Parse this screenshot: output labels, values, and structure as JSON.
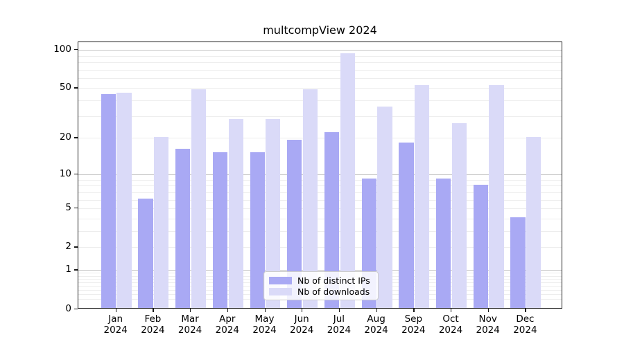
{
  "title": "multcompView 2024",
  "colors": {
    "ips_bar": "#a9a9f4",
    "downloads_bar": "#dadaf8",
    "grid_major": "#c4c4c4",
    "grid_minor": "#ededed",
    "axis": "#1a1a1a",
    "legend_border": "#cccccc",
    "background": "#ffffff"
  },
  "legend": {
    "items": [
      {
        "label": "Nb of distinct IPs",
        "series": "ips"
      },
      {
        "label": "Nb of downloads",
        "series": "downloads"
      }
    ]
  },
  "chart_data": {
    "type": "bar",
    "title": "multcompView 2024",
    "categories": [
      "Jan 2024",
      "Feb 2024",
      "Mar 2024",
      "Apr 2024",
      "May 2024",
      "Jun 2024",
      "Jul 2024",
      "Aug 2024",
      "Sep 2024",
      "Oct 2024",
      "Nov 2024",
      "Dec 2024"
    ],
    "x_tick_months": [
      "Jan",
      "Feb",
      "Mar",
      "Apr",
      "May",
      "Jun",
      "Jul",
      "Aug",
      "Sep",
      "Oct",
      "Nov",
      "Dec"
    ],
    "x_tick_year": "2024",
    "series": [
      {
        "name": "Nb of distinct IPs",
        "color": "#a9a9f4",
        "values": [
          44,
          6,
          16,
          15,
          15,
          19,
          22,
          9,
          18,
          9,
          8,
          4
        ]
      },
      {
        "name": "Nb of downloads",
        "color": "#dadaf8",
        "values": [
          45,
          20,
          48,
          28,
          28,
          48,
          92,
          35,
          52,
          26,
          52,
          20
        ]
      }
    ],
    "xlabel": "",
    "ylabel": "",
    "yscale": "log1p",
    "ylim": [
      0,
      115
    ],
    "y_tick_values": [
      0,
      1,
      2,
      5,
      10,
      20,
      50,
      100
    ],
    "y_tick_labels": [
      "0",
      "1",
      "2",
      "5",
      "10",
      "20",
      "50",
      "100"
    ],
    "y_major_gridlines": [
      1,
      10,
      100
    ],
    "y_minor_gridlines": [
      0.2,
      0.3,
      0.4,
      0.5,
      0.6,
      0.7,
      0.8,
      0.9,
      2,
      3,
      4,
      5,
      6,
      7,
      8,
      9,
      20,
      30,
      40,
      50,
      60,
      70,
      80,
      90
    ],
    "grid": "on",
    "legend_position": "lower center"
  }
}
